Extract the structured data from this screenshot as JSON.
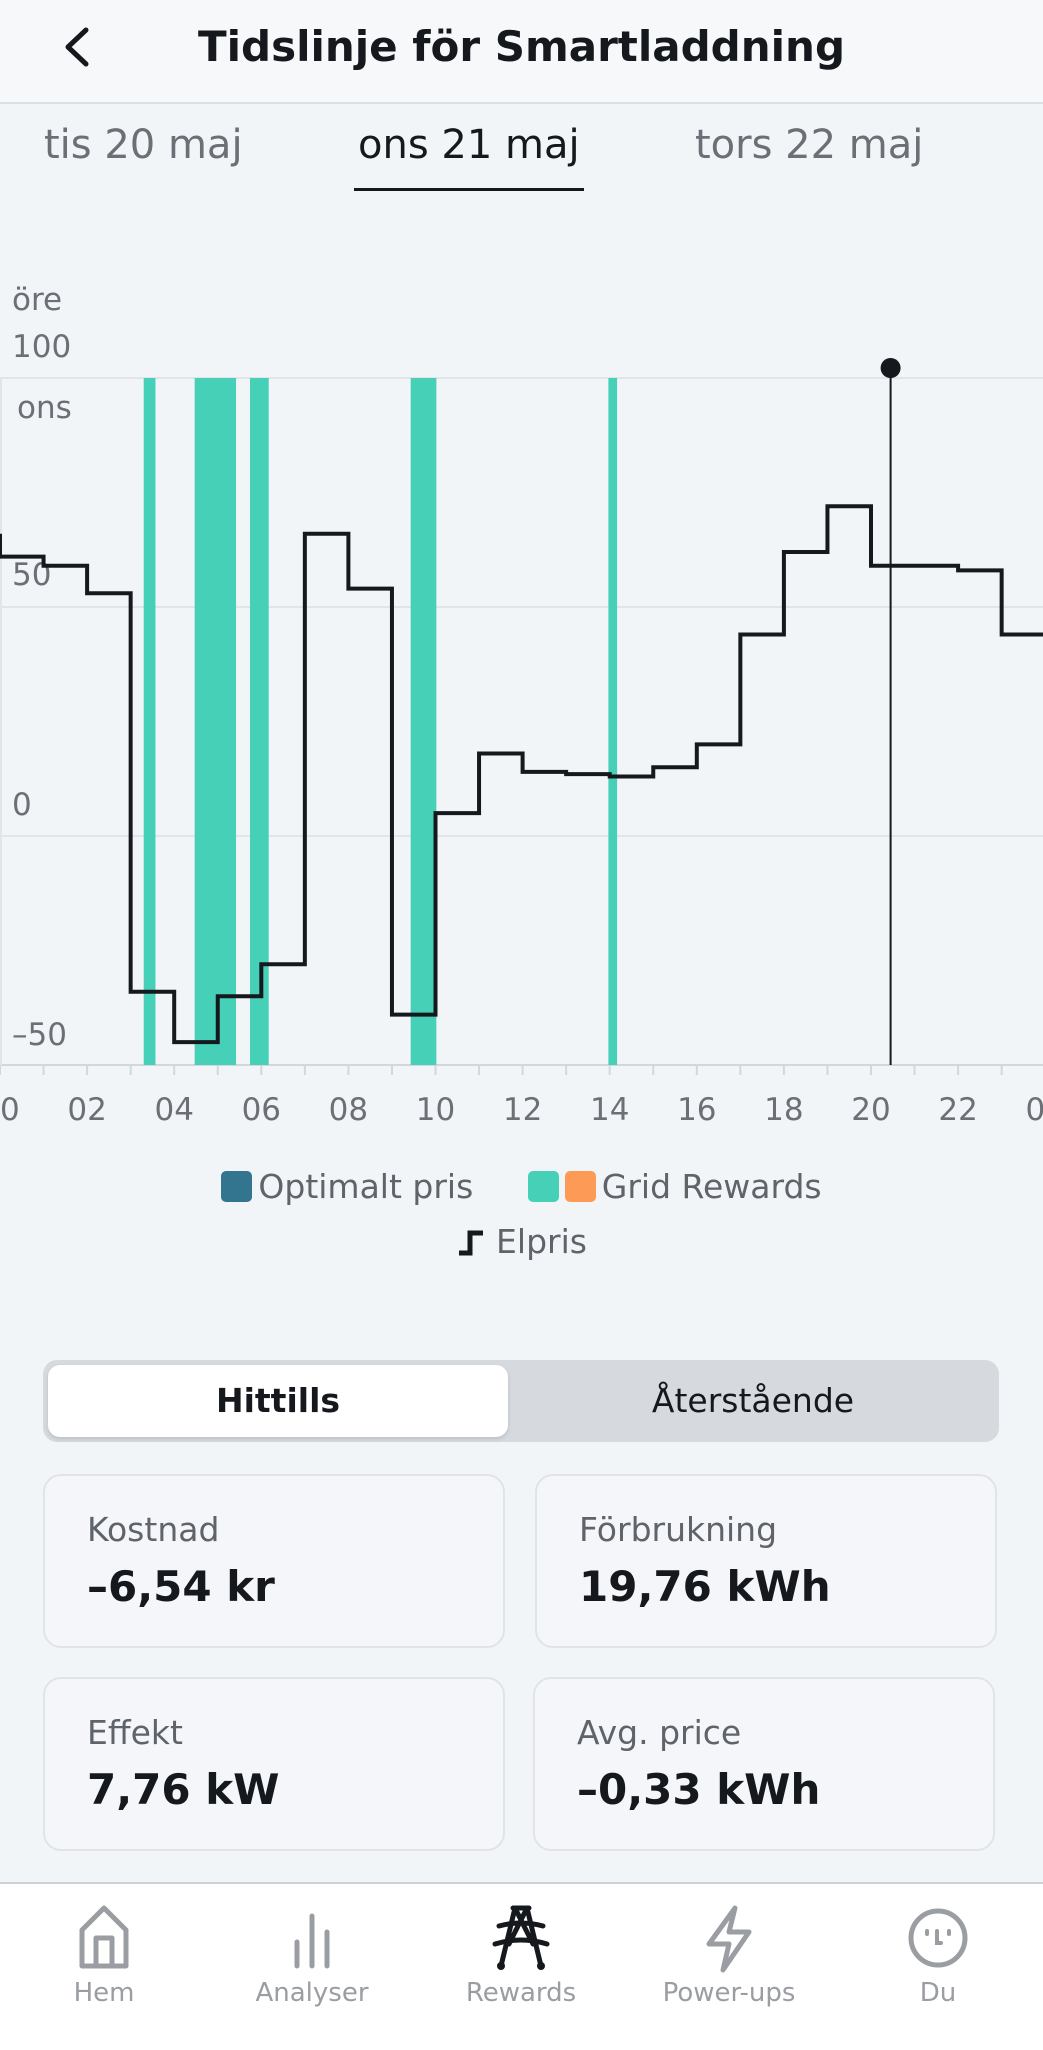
{
  "header": {
    "title": "Tidslinje för Smartladdning",
    "back_icon": "chevron-left-icon"
  },
  "tabs": [
    {
      "label": "tis 20 maj",
      "active": false
    },
    {
      "label": "ons 21 maj",
      "active": true
    },
    {
      "label": "tors 22 maj",
      "active": false
    }
  ],
  "chart_data": {
    "type": "line",
    "step": true,
    "ylabel": "öre",
    "day_label": "ons",
    "ylim": [
      -50,
      100
    ],
    "yticks": [
      "100",
      "50",
      "0",
      "–50"
    ],
    "ytick_values": [
      100,
      50,
      0,
      -50
    ],
    "xlim": [
      0,
      24
    ],
    "xticks": [
      "00",
      "02",
      "04",
      "06",
      "08",
      "10",
      "12",
      "14",
      "16",
      "18",
      "20",
      "22",
      "00"
    ],
    "grid": true,
    "series": [
      {
        "name": "Elpris",
        "color": "#15181d",
        "x": [
          0,
          1,
          2,
          3,
          4,
          5,
          6,
          7,
          8,
          9,
          10,
          11,
          12,
          13,
          14,
          15,
          16,
          17,
          18,
          19,
          20,
          21,
          22,
          23
        ],
        "values": [
          61,
          59,
          53,
          -34,
          -45,
          -35,
          -28,
          66,
          54,
          -39,
          5,
          18,
          14,
          13.5,
          13,
          15,
          20,
          44,
          62,
          72,
          59,
          59,
          58,
          44
        ],
        "end_value": 38
      }
    ],
    "grid_rewards_intervals": [
      [
        3.3,
        3.57
      ],
      [
        4.47,
        5.42
      ],
      [
        5.74,
        6.17
      ],
      [
        9.43,
        10.02
      ],
      [
        13.97,
        14.17
      ]
    ],
    "cursor_hour": 20.45,
    "colors": {
      "optimalt_pris": "#33748f",
      "grid_rewards_green": "#47d0b8",
      "grid_rewards_orange": "#fd9a55",
      "elpris": "#15181d"
    }
  },
  "legend": {
    "optimalt": "Optimalt pris",
    "grid": "Grid Rewards",
    "elpris": "Elpris"
  },
  "segment": {
    "selected": "Hittills",
    "other": "Återstående"
  },
  "cards": [
    {
      "label": "Kostnad",
      "value": "–6,54 kr"
    },
    {
      "label": "Förbrukning",
      "value": "19,76 kWh"
    },
    {
      "label": "Effekt",
      "value": "7,76 kW"
    },
    {
      "label": "Avg. price",
      "value": "–0,33 kWh"
    }
  ],
  "nav": [
    {
      "label": "Hem",
      "icon": "home-icon",
      "active": false
    },
    {
      "label": "Analyser",
      "icon": "bar-chart-icon",
      "active": false
    },
    {
      "label": "Rewards",
      "icon": "power-tower-icon",
      "active": true
    },
    {
      "label": "Power-ups",
      "icon": "lightning-icon",
      "active": false
    },
    {
      "label": "Du",
      "icon": "face-icon",
      "active": false
    }
  ]
}
